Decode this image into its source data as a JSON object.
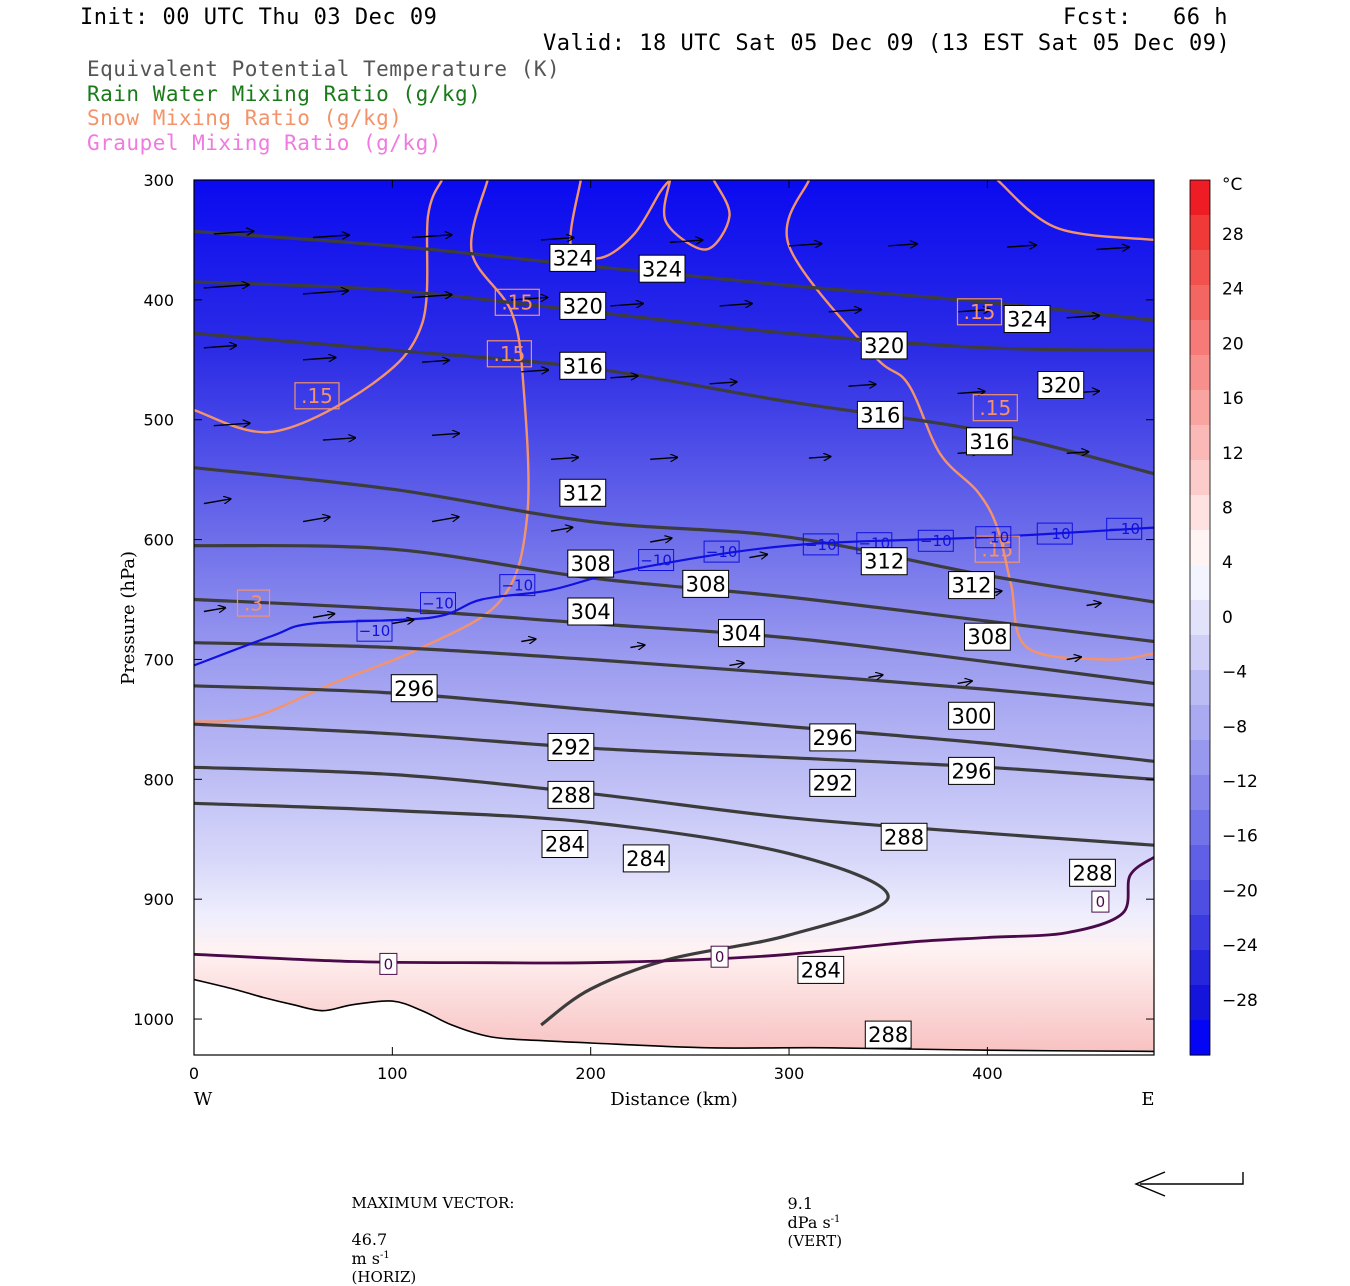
{
  "header": {
    "init": "Init: 00 UTC Thu 03 Dec 09",
    "fcst": "Fcst:   66 h",
    "valid": "Valid: 18 UTC Sat 05 Dec 09 (13 EST Sat 05 Dec 09)"
  },
  "legend": [
    {
      "label": "Equivalent Potential Temperature (K)",
      "color": "#555555"
    },
    {
      "label": "Rain Water Mixing Ratio (g/kg)",
      "color": "#1a7a1a"
    },
    {
      "label": "Snow Mixing Ratio (g/kg)",
      "color": "#f4936a"
    },
    {
      "label": "Graupel Mixing Ratio (g/kg)",
      "color": "#f07ae0"
    }
  ],
  "footer": {
    "max_vector_label": "MAXIMUM VECTOR:",
    "horiz_value": "46.7",
    "horiz_units": "m s",
    "horiz_tag": "(HORIZ)",
    "vert_value": "9.1",
    "vert_units": "dPa s",
    "vert_tag": "(VERT)",
    "exponent": "-1"
  },
  "colors": {
    "theta_e": "#3c3c3c",
    "snow": "#f4936a",
    "isotherm_neg10": "#1010e0",
    "isotherm_0": "#4a0a4a",
    "terrain": "#000000"
  },
  "chart_data": {
    "type": "contour",
    "xlabel": "Distance (km)",
    "ylabel": "Pressure (hPa)",
    "xlim": [
      0,
      484
    ],
    "ylim": [
      300,
      1030
    ],
    "y_scale": "pressure (inverted)",
    "x_ticks": [
      0,
      100,
      200,
      300,
      400
    ],
    "y_ticks": [
      300,
      400,
      500,
      600,
      700,
      800,
      900,
      1000
    ],
    "x_end_labels": {
      "left": "W",
      "right": "E"
    },
    "colorbar": {
      "units": "°C",
      "ticks": [
        "28",
        "24",
        "20",
        "16",
        "12",
        "8",
        "4",
        "0",
        "−4",
        "−8",
        "−12",
        "−16",
        "−20",
        "−24",
        "−28"
      ],
      "palette_top_to_bottom": [
        "#ee1c24",
        "#f03a38",
        "#f2524d",
        "#f46662",
        "#f67a77",
        "#f78f8c",
        "#f9a4a1",
        "#fab8b6",
        "#fccccb",
        "#fde2e1",
        "#fff4f3",
        "#f4f4ff",
        "#e2e2fb",
        "#cfcff8",
        "#bcbcf5",
        "#aaaaf2",
        "#9898ef",
        "#8585ec",
        "#7373e9",
        "#6060e6",
        "#4e4ee3",
        "#3a3ae0",
        "#2626dd",
        "#1414da",
        "#0505f6"
      ]
    },
    "temperature_field_celsius": [
      {
        "p": 300,
        "t": -36
      },
      {
        "p": 400,
        "t": -29
      },
      {
        "p": 500,
        "t": -22
      },
      {
        "p": 600,
        "t": -14
      },
      {
        "p": 700,
        "t": -8
      },
      {
        "p": 800,
        "t": -4
      },
      {
        "p": 900,
        "t": -2
      },
      {
        "p": 950,
        "t": 0
      },
      {
        "p": 1000,
        "t": 3
      },
      {
        "p": 1025,
        "t": 5
      }
    ],
    "theta_e_contours": [
      {
        "level": 324,
        "points": [
          [
            0,
            343
          ],
          [
            100,
            355
          ],
          [
            200,
            372
          ],
          [
            300,
            388
          ],
          [
            400,
            402
          ],
          [
            484,
            417
          ]
        ]
      },
      {
        "level": 320,
        "points": [
          [
            0,
            385
          ],
          [
            100,
            392
          ],
          [
            200,
            410
          ],
          [
            300,
            428
          ],
          [
            400,
            440
          ],
          [
            484,
            442
          ]
        ]
      },
      {
        "level": 316,
        "points": [
          [
            0,
            428
          ],
          [
            100,
            442
          ],
          [
            200,
            457
          ],
          [
            300,
            485
          ],
          [
            400,
            510
          ],
          [
            484,
            545
          ]
        ]
      },
      {
        "level": 312,
        "points": [
          [
            0,
            540
          ],
          [
            100,
            558
          ],
          [
            200,
            585
          ],
          [
            300,
            598
          ],
          [
            400,
            630
          ],
          [
            484,
            652
          ]
        ]
      },
      {
        "level": 308,
        "points": [
          [
            0,
            605
          ],
          [
            100,
            608
          ],
          [
            200,
            632
          ],
          [
            300,
            648
          ],
          [
            400,
            668
          ],
          [
            484,
            685
          ]
        ]
      },
      {
        "level": 304,
        "points": [
          [
            0,
            650
          ],
          [
            100,
            658
          ],
          [
            200,
            670
          ],
          [
            300,
            682
          ],
          [
            400,
            702
          ],
          [
            484,
            720
          ]
        ]
      },
      {
        "level": 300,
        "points": [
          [
            0,
            686
          ],
          [
            100,
            690
          ],
          [
            200,
            700
          ],
          [
            300,
            712
          ],
          [
            400,
            725
          ],
          [
            484,
            738
          ]
        ]
      },
      {
        "level": 296,
        "points": [
          [
            0,
            722
          ],
          [
            100,
            728
          ],
          [
            200,
            742
          ],
          [
            300,
            756
          ],
          [
            400,
            770
          ],
          [
            484,
            785
          ]
        ]
      },
      {
        "level": 292,
        "points": [
          [
            0,
            754
          ],
          [
            100,
            762
          ],
          [
            200,
            774
          ],
          [
            300,
            782
          ],
          [
            400,
            790
          ],
          [
            484,
            800
          ]
        ]
      },
      {
        "level": 288,
        "points": [
          [
            0,
            790
          ],
          [
            100,
            796
          ],
          [
            200,
            812
          ],
          [
            300,
            832
          ],
          [
            400,
            845
          ],
          [
            484,
            855
          ]
        ]
      },
      {
        "level": 284,
        "points": [
          [
            0,
            820
          ],
          [
            100,
            826
          ],
          [
            200,
            836
          ],
          [
            300,
            862
          ],
          [
            350,
            898
          ],
          [
            300,
            930
          ],
          [
            240,
            950
          ],
          [
            200,
            975
          ],
          [
            175,
            1005
          ]
        ]
      }
    ],
    "theta_e_labels": [
      {
        "x": 191,
        "p": 365,
        "text": "324"
      },
      {
        "x": 236,
        "p": 374,
        "text": "324"
      },
      {
        "x": 196,
        "p": 405,
        "text": "320"
      },
      {
        "x": 348,
        "p": 438,
        "text": "320"
      },
      {
        "x": 420,
        "p": 416,
        "text": "324"
      },
      {
        "x": 437,
        "p": 471,
        "text": "320"
      },
      {
        "x": 196,
        "p": 455,
        "text": "316"
      },
      {
        "x": 346,
        "p": 496,
        "text": "316"
      },
      {
        "x": 401,
        "p": 518,
        "text": "316"
      },
      {
        "x": 196,
        "p": 561,
        "text": "312"
      },
      {
        "x": 348,
        "p": 618,
        "text": "312"
      },
      {
        "x": 392,
        "p": 638,
        "text": "312"
      },
      {
        "x": 200,
        "p": 620,
        "text": "308"
      },
      {
        "x": 258,
        "p": 637,
        "text": "308"
      },
      {
        "x": 400,
        "p": 681,
        "text": "308"
      },
      {
        "x": 200,
        "p": 660,
        "text": "304"
      },
      {
        "x": 276,
        "p": 678,
        "text": "304"
      },
      {
        "x": 111,
        "p": 724,
        "text": "296"
      },
      {
        "x": 322,
        "p": 765,
        "text": "296"
      },
      {
        "x": 392,
        "p": 793,
        "text": "296"
      },
      {
        "x": 392,
        "p": 747,
        "text": "300"
      },
      {
        "x": 190,
        "p": 773,
        "text": "292"
      },
      {
        "x": 322,
        "p": 803,
        "text": "292"
      },
      {
        "x": 190,
        "p": 813,
        "text": "288"
      },
      {
        "x": 358,
        "p": 848,
        "text": "288"
      },
      {
        "x": 453,
        "p": 878,
        "text": "288"
      },
      {
        "x": 350,
        "p": 1013,
        "text": "288"
      },
      {
        "x": 187,
        "p": 854,
        "text": "284"
      },
      {
        "x": 228,
        "p": 866,
        "text": "284"
      },
      {
        "x": 316,
        "p": 959,
        "text": "284"
      }
    ],
    "snow_contours": [
      {
        "level": 0.15,
        "points": [
          [
            0,
            492
          ],
          [
            40,
            510
          ],
          [
            90,
            470
          ],
          [
            115,
            420
          ],
          [
            118,
            330
          ],
          [
            125,
            300
          ]
        ]
      },
      {
        "level": 0.15,
        "points": [
          [
            0,
            752
          ],
          [
            30,
            748
          ],
          [
            70,
            720
          ],
          [
            115,
            690
          ],
          [
            155,
            650
          ],
          [
            168,
            580
          ],
          [
            166,
            470
          ],
          [
            160,
            410
          ],
          [
            140,
            360
          ],
          [
            148,
            300
          ]
        ]
      },
      {
        "level": 0.15,
        "points": [
          [
            195,
            300
          ],
          [
            190,
            355
          ],
          [
            205,
            365
          ],
          [
            222,
            345
          ],
          [
            235,
            310
          ],
          [
            240,
            300
          ]
        ]
      },
      {
        "level": 0.15,
        "points": [
          [
            240,
            300
          ],
          [
            238,
            335
          ],
          [
            258,
            358
          ],
          [
            270,
            330
          ],
          [
            262,
            300
          ]
        ]
      },
      {
        "level": 0.15,
        "points": [
          [
            310,
            300
          ],
          [
            300,
            355
          ],
          [
            342,
            445
          ],
          [
            360,
            470
          ],
          [
            376,
            528
          ],
          [
            395,
            560
          ],
          [
            405,
            590
          ],
          [
            412,
            638
          ],
          [
            420,
            690
          ],
          [
            460,
            700
          ],
          [
            484,
            695
          ]
        ]
      },
      {
        "level": 0.15,
        "points": [
          [
            405,
            300
          ],
          [
            435,
            340
          ],
          [
            484,
            350
          ]
        ]
      }
    ],
    "snow_labels": [
      {
        "x": 62,
        "p": 480,
        "text": ".15"
      },
      {
        "x": 163,
        "p": 402,
        "text": ".15"
      },
      {
        "x": 159,
        "p": 445,
        "text": ".15"
      },
      {
        "x": 404,
        "p": 490,
        "text": ".15"
      },
      {
        "x": 405,
        "p": 608,
        "text": ".15"
      },
      {
        "x": 396,
        "p": 410,
        "text": ".15"
      },
      {
        "x": 30,
        "p": 653,
        "text": ".3"
      }
    ],
    "isotherm_neg10": {
      "points": [
        [
          0,
          705
        ],
        [
          40,
          680
        ],
        [
          60,
          670
        ],
        [
          120,
          665
        ],
        [
          145,
          650
        ],
        [
          180,
          642
        ],
        [
          220,
          625
        ],
        [
          300,
          605
        ],
        [
          400,
          598
        ],
        [
          484,
          590
        ]
      ]
    },
    "isotherm_neg10_labels": [
      {
        "x": 91,
        "p": 676,
        "text": "−10"
      },
      {
        "x": 123,
        "p": 653,
        "text": "−10"
      },
      {
        "x": 163,
        "p": 638,
        "text": "−10"
      },
      {
        "x": 233,
        "p": 617,
        "text": "−10"
      },
      {
        "x": 266,
        "p": 610,
        "text": "−10"
      },
      {
        "x": 316,
        "p": 604,
        "text": "−10"
      },
      {
        "x": 343,
        "p": 603,
        "text": "−10"
      },
      {
        "x": 374,
        "p": 601,
        "text": "−10"
      },
      {
        "x": 403,
        "p": 598,
        "text": "−10"
      },
      {
        "x": 434,
        "p": 595,
        "text": "−10"
      },
      {
        "x": 469,
        "p": 591,
        "text": "−10"
      }
    ],
    "isotherm_0": {
      "points": [
        [
          0,
          946
        ],
        [
          80,
          952
        ],
        [
          150,
          953
        ],
        [
          200,
          953
        ],
        [
          260,
          950
        ],
        [
          300,
          946
        ],
        [
          360,
          936
        ],
        [
          400,
          932
        ],
        [
          440,
          928
        ],
        [
          468,
          912
        ],
        [
          472,
          880
        ],
        [
          484,
          865
        ]
      ]
    },
    "isotherm_0_labels": [
      {
        "x": 98,
        "p": 954,
        "text": "0"
      },
      {
        "x": 265,
        "p": 948,
        "text": "0"
      },
      {
        "x": 457,
        "p": 902,
        "text": "0"
      }
    ],
    "terrain_surface_hpa": [
      [
        0,
        967
      ],
      [
        20,
        975
      ],
      [
        35,
        982
      ],
      [
        50,
        988
      ],
      [
        65,
        993
      ],
      [
        80,
        988
      ],
      [
        100,
        985
      ],
      [
        115,
        993
      ],
      [
        130,
        1005
      ],
      [
        150,
        1015
      ],
      [
        175,
        1018
      ],
      [
        200,
        1020
      ],
      [
        260,
        1024
      ],
      [
        320,
        1024
      ],
      [
        400,
        1026
      ],
      [
        484,
        1027
      ]
    ],
    "wind_vectors": [
      [
        10,
        345,
        22
      ],
      [
        60,
        348,
        20
      ],
      [
        110,
        348,
        22
      ],
      [
        175,
        350,
        18
      ],
      [
        240,
        352,
        18
      ],
      [
        300,
        355,
        18
      ],
      [
        350,
        355,
        16
      ],
      [
        410,
        356,
        16
      ],
      [
        455,
        358,
        18
      ],
      [
        5,
        390,
        25
      ],
      [
        55,
        395,
        25
      ],
      [
        110,
        398,
        22
      ],
      [
        160,
        400,
        20
      ],
      [
        210,
        405,
        18
      ],
      [
        265,
        405,
        18
      ],
      [
        320,
        410,
        18
      ],
      [
        385,
        410,
        18
      ],
      [
        440,
        415,
        18
      ],
      [
        5,
        440,
        18
      ],
      [
        55,
        450,
        18
      ],
      [
        115,
        452,
        15
      ],
      [
        165,
        460,
        15
      ],
      [
        210,
        465,
        15
      ],
      [
        260,
        470,
        15
      ],
      [
        330,
        472,
        15
      ],
      [
        385,
        478,
        15
      ],
      [
        440,
        478,
        18
      ],
      [
        10,
        505,
        20
      ],
      [
        65,
        517,
        18
      ],
      [
        120,
        513,
        15
      ],
      [
        180,
        533,
        15
      ],
      [
        230,
        533,
        15
      ],
      [
        310,
        532,
        12
      ],
      [
        385,
        528,
        12
      ],
      [
        440,
        528,
        12
      ],
      [
        5,
        570,
        15
      ],
      [
        55,
        585,
        15
      ],
      [
        120,
        585,
        15
      ],
      [
        180,
        593,
        12
      ],
      [
        230,
        602,
        12
      ],
      [
        280,
        615,
        10
      ],
      [
        340,
        622,
        10
      ],
      [
        400,
        645,
        8
      ],
      [
        450,
        655,
        8
      ],
      [
        5,
        660,
        12
      ],
      [
        60,
        665,
        12
      ],
      [
        100,
        670,
        12
      ],
      [
        165,
        685,
        8
      ],
      [
        220,
        690,
        8
      ],
      [
        270,
        705,
        8
      ],
      [
        340,
        715,
        8
      ],
      [
        385,
        720,
        8
      ],
      [
        440,
        700,
        8
      ]
    ]
  }
}
